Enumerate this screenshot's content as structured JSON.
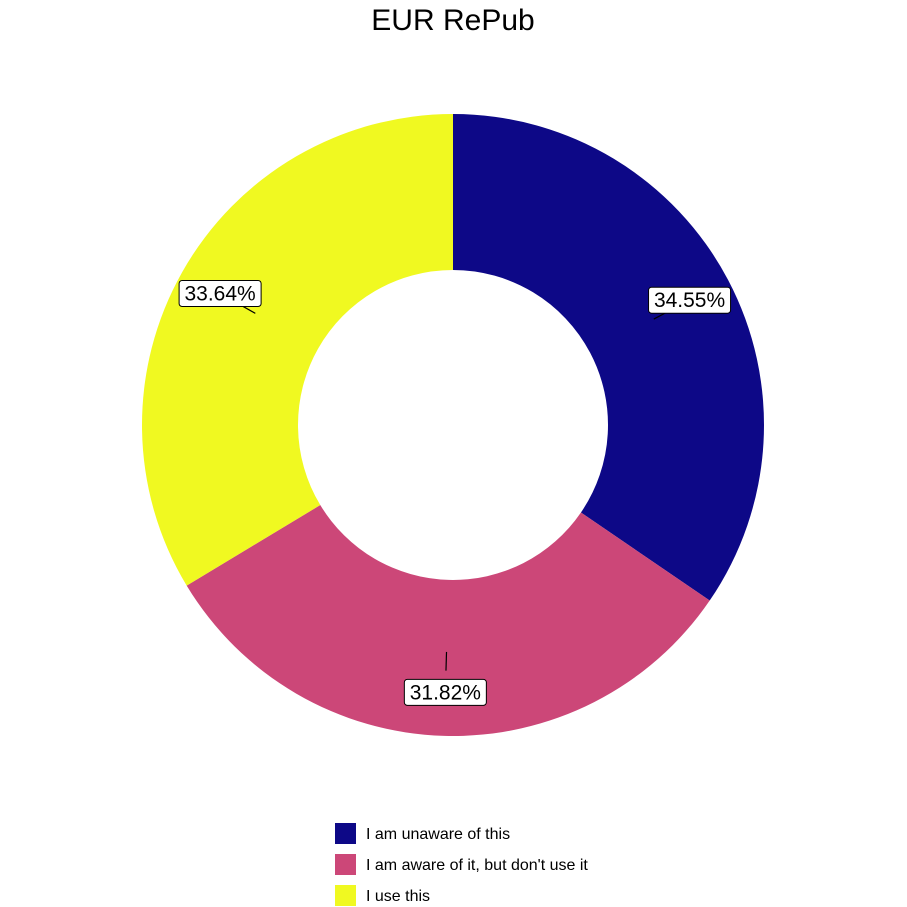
{
  "chart_data": {
    "type": "pie",
    "style": "donut",
    "title": "EUR RePub",
    "series": [
      {
        "name": "I am unaware of this",
        "value": 34.55,
        "label": "34.55%",
        "color": "#0d0887"
      },
      {
        "name": "I am aware of it, but don't use it",
        "value": 31.82,
        "label": "31.82%",
        "color": "#cc4778"
      },
      {
        "name": "I use this",
        "value": 33.64,
        "label": "33.64%",
        "color": "#f0f921"
      }
    ],
    "legend_position": "bottom"
  }
}
